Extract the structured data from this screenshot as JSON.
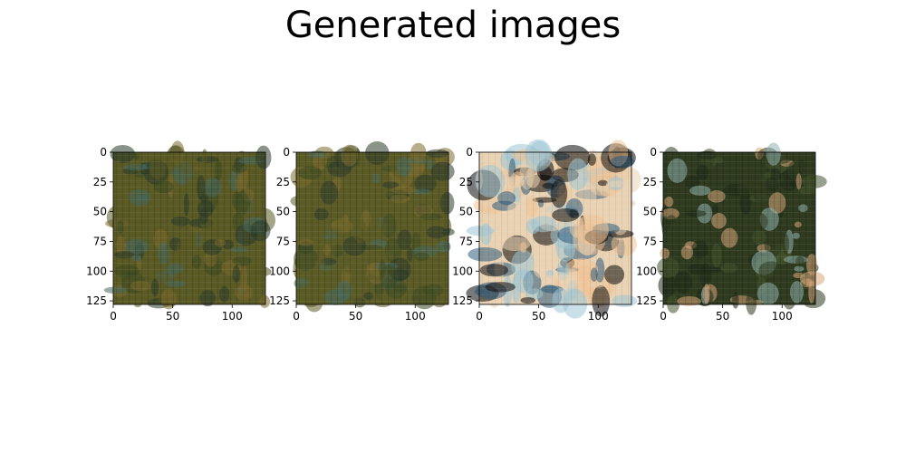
{
  "figure": {
    "title": "Generated images",
    "image_size": 128,
    "axes": {
      "x_ticks": [
        "0",
        "50",
        "100"
      ],
      "y_ticks": [
        "0",
        "25",
        "50",
        "75",
        "100",
        "125"
      ],
      "x_tick_values": [
        0,
        50,
        100
      ],
      "y_tick_values": [
        0,
        25,
        50,
        75,
        100,
        125
      ]
    },
    "panels": [
      {
        "id": "panel-1",
        "description": "olive-green and brown textured noise with grid pattern",
        "palette": [
          "#5a5a25",
          "#3d4a22",
          "#7b6a2c",
          "#2a3a2a",
          "#466a60"
        ]
      },
      {
        "id": "panel-2",
        "description": "olive-green and brown textured noise with grid pattern",
        "palette": [
          "#5b5b26",
          "#3e4b23",
          "#7c6b2d",
          "#2b3b2b",
          "#476b61"
        ]
      },
      {
        "id": "panel-3",
        "description": "blue, cream, peach and black blotchy face-like pattern",
        "palette": [
          "#e9d3b4",
          "#2d5b7b",
          "#0b0b0b",
          "#f0c294",
          "#9fc6d6"
        ]
      },
      {
        "id": "panel-4",
        "description": "dark green with peach and light blue face-like blobs",
        "palette": [
          "#2f3b1f",
          "#d8a77a",
          "#8fb3ad",
          "#44542c",
          "#1e2a18"
        ]
      }
    ]
  }
}
